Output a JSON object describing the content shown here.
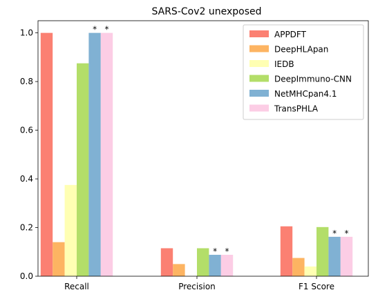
{
  "chart_data": {
    "type": "bar",
    "title": "SARS-Cov2 unexposed",
    "xlabel": "",
    "ylabel": "",
    "categories": [
      "Recall",
      "Precision",
      "F1 Score"
    ],
    "ylim": [
      0,
      1.05
    ],
    "yticks": [
      0.0,
      0.2,
      0.4,
      0.6,
      0.8,
      1.0
    ],
    "ytick_labels": [
      "0.0",
      "0.2",
      "0.4",
      "0.6",
      "0.8",
      "1.0"
    ],
    "grid": false,
    "legend_position": "top-right",
    "marker_text": "*",
    "series": [
      {
        "name": "APPDFT",
        "color": "#fb8072",
        "values": [
          1.0,
          0.115,
          0.205
        ],
        "starred": [
          false,
          false,
          false
        ]
      },
      {
        "name": "DeepHLApan",
        "color": "#fdb462",
        "values": [
          0.14,
          0.05,
          0.075
        ],
        "starred": [
          false,
          false,
          false
        ]
      },
      {
        "name": "IEDB",
        "color": "#ffffb3",
        "values": [
          0.375,
          0.0,
          0.04
        ],
        "starred": [
          false,
          false,
          false
        ]
      },
      {
        "name": "DeepImmuno-CNN",
        "color": "#b3de69",
        "values": [
          0.875,
          0.115,
          0.202
        ],
        "starred": [
          false,
          false,
          false
        ]
      },
      {
        "name": "NetMHCpan4.1",
        "color": "#80b1d3",
        "values": [
          1.0,
          0.088,
          0.162
        ],
        "starred": [
          true,
          true,
          true
        ]
      },
      {
        "name": "TransPHLA",
        "color": "#fccde5",
        "values": [
          1.0,
          0.088,
          0.162
        ],
        "starred": [
          true,
          true,
          true
        ]
      }
    ]
  }
}
